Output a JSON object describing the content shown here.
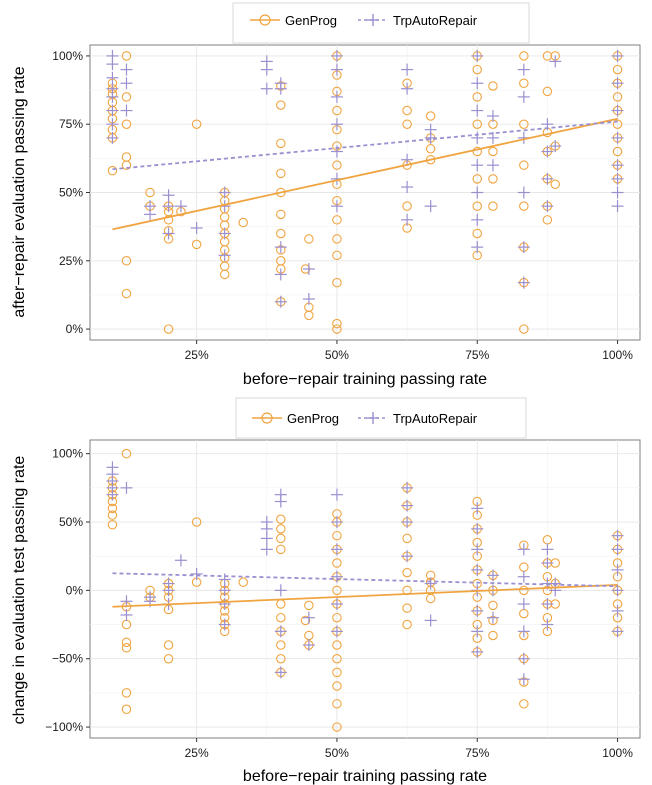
{
  "colors": {
    "genprog": "#f0a440",
    "trp": "#9b8fd0",
    "grid": "#e6e6e6",
    "panel_border": "#7f7f7f"
  },
  "chart_data": [
    {
      "type": "scatter",
      "xlabel": "before−repair training passing rate",
      "ylabel": "after−repair evaluation passing rate",
      "xlim": [
        0.06,
        1.04
      ],
      "ylim": [
        -0.04,
        1.04
      ],
      "x_ticks": [
        0.25,
        0.5,
        0.75,
        1.0
      ],
      "x_tick_labels": [
        "25%",
        "50%",
        "75%",
        "100%"
      ],
      "y_ticks": [
        0,
        0.25,
        0.5,
        0.75,
        1.0
      ],
      "y_tick_labels": [
        "0%",
        "25%",
        "50%",
        "75%",
        "100%"
      ],
      "legend": {
        "position": "top-center",
        "entries": [
          "GenProg",
          "TrpAutoRepair"
        ]
      },
      "grid": true,
      "series": [
        {
          "name": "GenProg",
          "marker": "circle",
          "trend": {
            "x": [
              0.1,
              1.0
            ],
            "y": [
              0.365,
              0.77
            ]
          },
          "columns": [
            {
              "x": 0.1,
              "y": [
                0.58,
                0.7,
                0.73,
                0.77,
                0.8,
                0.83,
                0.86,
                0.88,
                0.9
              ]
            },
            {
              "x": 0.125,
              "y": [
                0.13,
                0.25,
                0.6,
                0.63,
                0.75,
                0.85,
                1.0
              ]
            },
            {
              "x": 0.167,
              "y": [
                0.45,
                0.5
              ]
            },
            {
              "x": 0.2,
              "y": [
                0.0,
                0.33,
                0.36,
                0.4,
                0.43,
                0.45
              ]
            },
            {
              "x": 0.222,
              "y": [
                0.43
              ]
            },
            {
              "x": 0.25,
              "y": [
                0.31,
                0.75
              ]
            },
            {
              "x": 0.3,
              "y": [
                0.2,
                0.23,
                0.26,
                0.29,
                0.32,
                0.35,
                0.38,
                0.41,
                0.44,
                0.47,
                0.5
              ]
            },
            {
              "x": 0.333,
              "y": [
                0.39
              ]
            },
            {
              "x": 0.4,
              "y": [
                0.1,
                0.22,
                0.25,
                0.29,
                0.35,
                0.42,
                0.5,
                0.57,
                0.68,
                0.82,
                0.89
              ]
            },
            {
              "x": 0.444,
              "y": [
                0.22
              ]
            },
            {
              "x": 0.45,
              "y": [
                0.33,
                0.05,
                0.08
              ]
            },
            {
              "x": 0.5,
              "y": [
                0.0,
                0.02,
                0.17,
                0.27,
                0.33,
                0.4,
                0.47,
                0.53,
                0.6,
                0.67,
                0.73,
                0.8,
                0.87,
                0.93,
                1.0
              ]
            },
            {
              "x": 0.625,
              "y": [
                0.37,
                0.45,
                0.6,
                0.75,
                0.8,
                0.9
              ]
            },
            {
              "x": 0.667,
              "y": [
                0.62,
                0.66,
                0.7,
                0.78
              ]
            },
            {
              "x": 0.75,
              "y": [
                0.27,
                0.35,
                0.45,
                0.55,
                0.65,
                0.75,
                0.85,
                0.95,
                1.0
              ]
            },
            {
              "x": 0.778,
              "y": [
                0.45,
                0.55,
                0.65,
                0.75,
                0.89
              ]
            },
            {
              "x": 0.833,
              "y": [
                0.0,
                0.17,
                0.3,
                0.45,
                0.6,
                0.75,
                0.9,
                1.0
              ]
            },
            {
              "x": 0.875,
              "y": [
                0.4,
                0.45,
                0.55,
                0.65,
                0.72,
                0.87,
                1.0
              ]
            },
            {
              "x": 0.889,
              "y": [
                0.53,
                0.67,
                1.0
              ]
            },
            {
              "x": 1.0,
              "y": [
                0.55,
                0.6,
                0.65,
                0.7,
                0.75,
                0.8,
                0.85,
                0.9,
                0.95,
                1.0
              ]
            }
          ]
        },
        {
          "name": "TrpAutoRepair",
          "marker": "plus",
          "trend": {
            "x": [
              0.1,
              1.0
            ],
            "y": [
              0.585,
              0.76
            ]
          },
          "columns": [
            {
              "x": 0.1,
              "y": [
                0.7,
                0.75,
                0.8,
                0.85,
                0.88,
                0.92,
                0.97,
                1.0
              ]
            },
            {
              "x": 0.125,
              "y": [
                0.8,
                0.9,
                0.95
              ]
            },
            {
              "x": 0.167,
              "y": [
                0.42,
                0.45
              ]
            },
            {
              "x": 0.2,
              "y": [
                0.35,
                0.45,
                0.49
              ]
            },
            {
              "x": 0.222,
              "y": [
                0.45
              ]
            },
            {
              "x": 0.25,
              "y": [
                0.37
              ]
            },
            {
              "x": 0.3,
              "y": [
                0.27,
                0.35,
                0.45,
                0.5
              ]
            },
            {
              "x": 0.375,
              "y": [
                0.88,
                0.95,
                0.98
              ]
            },
            {
              "x": 0.4,
              "y": [
                0.1,
                0.2,
                0.3,
                0.88,
                0.9
              ]
            },
            {
              "x": 0.45,
              "y": [
                0.11,
                0.22
              ]
            },
            {
              "x": 0.5,
              "y": [
                0.45,
                0.55,
                0.65,
                0.75,
                0.85,
                0.95,
                1.0
              ]
            },
            {
              "x": 0.625,
              "y": [
                0.4,
                0.52,
                0.62,
                0.88,
                0.95
              ]
            },
            {
              "x": 0.667,
              "y": [
                0.45,
                0.7,
                0.73
              ]
            },
            {
              "x": 0.75,
              "y": [
                0.3,
                0.4,
                0.5,
                0.6,
                0.7,
                0.8,
                0.9,
                1.0
              ]
            },
            {
              "x": 0.778,
              "y": [
                0.6,
                0.7,
                0.78
              ]
            },
            {
              "x": 0.833,
              "y": [
                0.17,
                0.3,
                0.5,
                0.7,
                0.85,
                0.95
              ]
            },
            {
              "x": 0.875,
              "y": [
                0.45,
                0.55,
                0.65,
                0.75
              ]
            },
            {
              "x": 0.889,
              "y": [
                0.67,
                0.98
              ]
            },
            {
              "x": 1.0,
              "y": [
                0.45,
                0.5,
                0.55,
                0.6,
                0.7,
                0.8,
                0.9,
                1.0
              ]
            }
          ]
        }
      ]
    },
    {
      "type": "scatter",
      "xlabel": "before−repair training passing rate",
      "ylabel": "change in evaluation test passing rate",
      "xlim": [
        0.06,
        1.04
      ],
      "ylim": [
        -1.08,
        1.1
      ],
      "x_ticks": [
        0.25,
        0.5,
        0.75,
        1.0
      ],
      "x_tick_labels": [
        "25%",
        "50%",
        "75%",
        "100%"
      ],
      "y_ticks": [
        -1.0,
        -0.5,
        0,
        0.5,
        1.0
      ],
      "y_tick_labels": [
        "−100%",
        "−50%",
        "0%",
        "50%",
        "100%"
      ],
      "legend": {
        "position": "top-center",
        "entries": [
          "GenProg",
          "TrpAutoRepair"
        ]
      },
      "grid": true,
      "series": [
        {
          "name": "GenProg",
          "marker": "circle",
          "trend": {
            "x": [
              0.1,
              1.0
            ],
            "y": [
              -0.12,
              0.04
            ]
          },
          "columns": [
            {
              "x": 0.1,
              "y": [
                0.48,
                0.55,
                0.6,
                0.65,
                0.7,
                0.75,
                0.8
              ]
            },
            {
              "x": 0.125,
              "y": [
                -0.87,
                -0.75,
                -0.42,
                -0.38,
                -0.25,
                -0.12,
                1.0
              ]
            },
            {
              "x": 0.167,
              "y": [
                -0.05,
                0.0
              ]
            },
            {
              "x": 0.2,
              "y": [
                -0.5,
                -0.4,
                -0.14,
                -0.05,
                0.0,
                0.05
              ]
            },
            {
              "x": 0.25,
              "y": [
                0.06,
                0.5
              ]
            },
            {
              "x": 0.3,
              "y": [
                -0.3,
                -0.25,
                -0.2,
                -0.15,
                -0.1,
                -0.05,
                0.0,
                0.05
              ]
            },
            {
              "x": 0.333,
              "y": [
                0.06
              ]
            },
            {
              "x": 0.4,
              "y": [
                -0.6,
                -0.5,
                -0.4,
                -0.3,
                -0.2,
                -0.1,
                0.3,
                0.38,
                0.45,
                0.52
              ]
            },
            {
              "x": 0.444,
              "y": [
                -0.22
              ]
            },
            {
              "x": 0.45,
              "y": [
                -0.4,
                -0.33,
                -0.11
              ]
            },
            {
              "x": 0.5,
              "y": [
                -1.0,
                -0.83,
                -0.7,
                -0.6,
                -0.5,
                -0.4,
                -0.3,
                -0.2,
                -0.1,
                0.0,
                0.1,
                0.2,
                0.3,
                0.4,
                0.5,
                0.56
              ]
            },
            {
              "x": 0.625,
              "y": [
                -0.25,
                -0.13,
                0.0,
                0.13,
                0.25,
                0.38,
                0.5,
                0.62,
                0.75
              ]
            },
            {
              "x": 0.667,
              "y": [
                -0.06,
                0.0,
                0.06,
                0.11
              ]
            },
            {
              "x": 0.75,
              "y": [
                -0.45,
                -0.35,
                -0.25,
                -0.15,
                -0.05,
                0.05,
                0.15,
                0.25,
                0.35,
                0.45,
                0.55,
                0.65
              ]
            },
            {
              "x": 0.778,
              "y": [
                -0.33,
                -0.22,
                -0.11,
                0.0,
                0.11
              ]
            },
            {
              "x": 0.833,
              "y": [
                -0.83,
                -0.67,
                -0.5,
                -0.33,
                -0.17,
                0.0,
                0.17,
                0.33
              ]
            },
            {
              "x": 0.875,
              "y": [
                -0.3,
                -0.2,
                -0.1,
                0.0,
                0.1,
                0.2,
                0.37
              ]
            },
            {
              "x": 0.889,
              "y": [
                -0.1,
                0.05,
                0.2
              ]
            },
            {
              "x": 1.0,
              "y": [
                -0.3,
                -0.2,
                -0.1,
                0.0,
                0.1,
                0.2,
                0.3,
                0.4
              ]
            }
          ]
        },
        {
          "name": "TrpAutoRepair",
          "marker": "plus",
          "trend": {
            "x": [
              0.1,
              1.0
            ],
            "y": [
              0.125,
              0.03
            ]
          },
          "columns": [
            {
              "x": 0.1,
              "y": [
                0.7,
                0.75,
                0.8,
                0.85,
                0.9
              ]
            },
            {
              "x": 0.125,
              "y": [
                -0.18,
                -0.08,
                0.75
              ]
            },
            {
              "x": 0.167,
              "y": [
                -0.08,
                -0.05
              ]
            },
            {
              "x": 0.2,
              "y": [
                -0.1,
                0.0,
                0.05
              ]
            },
            {
              "x": 0.222,
              "y": [
                0.22
              ]
            },
            {
              "x": 0.25,
              "y": [
                0.12
              ]
            },
            {
              "x": 0.3,
              "y": [
                -0.25,
                -0.1,
                0.0,
                0.08
              ]
            },
            {
              "x": 0.375,
              "y": [
                0.3,
                0.38,
                0.45,
                0.5
              ]
            },
            {
              "x": 0.4,
              "y": [
                -0.6,
                -0.3,
                0.0,
                0.65,
                0.7
              ]
            },
            {
              "x": 0.45,
              "y": [
                -0.4,
                -0.2
              ]
            },
            {
              "x": 0.5,
              "y": [
                -0.3,
                -0.1,
                0.1,
                0.3,
                0.5,
                0.7
              ]
            },
            {
              "x": 0.625,
              "y": [
                0.25,
                0.5,
                0.62,
                0.75
              ]
            },
            {
              "x": 0.667,
              "y": [
                -0.22,
                0.05
              ]
            },
            {
              "x": 0.75,
              "y": [
                -0.45,
                -0.3,
                -0.15,
                0.0,
                0.15,
                0.3,
                0.45,
                0.6
              ]
            },
            {
              "x": 0.778,
              "y": [
                -0.2,
                0.0,
                0.11
              ]
            },
            {
              "x": 0.833,
              "y": [
                -0.65,
                -0.5,
                -0.3,
                -0.1,
                0.1,
                0.3
              ]
            },
            {
              "x": 0.875,
              "y": [
                -0.25,
                -0.1,
                0.05,
                0.2,
                0.3
              ]
            },
            {
              "x": 0.889,
              "y": [
                0.0,
                0.05
              ]
            },
            {
              "x": 1.0,
              "y": [
                -0.3,
                -0.15,
                0.0,
                0.15,
                0.3,
                0.4
              ]
            }
          ]
        }
      ]
    }
  ]
}
